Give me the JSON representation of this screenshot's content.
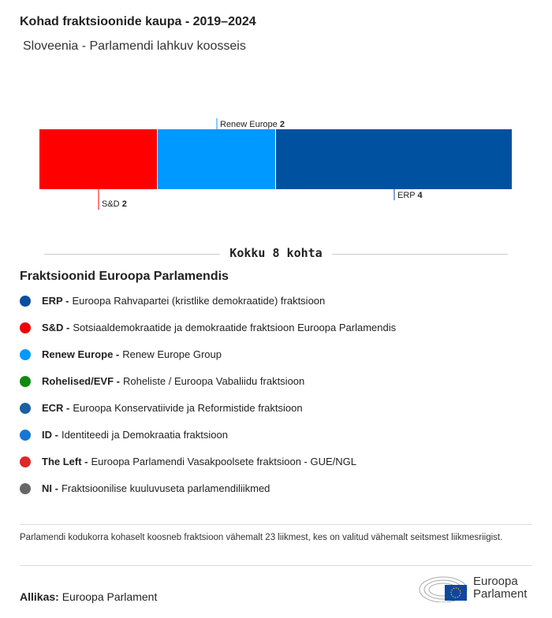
{
  "title": "Kohad fraktsioonide kaupa - 2019–2024",
  "subtitle": "Sloveenia - Parlamendi lahkuv koosseis",
  "chart_data": {
    "type": "bar",
    "orientation": "stacked-horizontal",
    "categories": [
      "S&D",
      "Renew Europe",
      "ERP"
    ],
    "values": [
      2,
      2,
      4
    ],
    "colors": [
      "#ff0000",
      "#0099ff",
      "#0052a0"
    ],
    "total": 8
  },
  "total_label": "Kokku 8 kohta",
  "legend_title": "Fraktsioonid Euroopa Parlamendis",
  "legend": [
    {
      "abbr": "ERP -",
      "name": "Euroopa Rahvapartei (kristlike demokraatide) fraktsioon",
      "color": "#0a4f9e"
    },
    {
      "abbr": "S&D -",
      "name": "Sotsiaaldemokraatide ja demokraatide fraktsioon Euroopa Parlamendis",
      "color": "#f00000"
    },
    {
      "abbr": "Renew Europe -",
      "name": "Renew Europe Group",
      "color": "#0099ff"
    },
    {
      "abbr": "Rohelised/EVF -",
      "name": "Roheliste / Euroopa Vabaliidu fraktsioon",
      "color": "#108a10"
    },
    {
      "abbr": "ECR -",
      "name": "Euroopa Konservatiivide ja Reformistide fraktsioon",
      "color": "#1d5fa0"
    },
    {
      "abbr": "ID -",
      "name": "Identiteedi ja Demokraatia fraktsioon",
      "color": "#1477d3"
    },
    {
      "abbr": "The Left -",
      "name": "Euroopa Parlamendi Vasakpoolsete fraktsioon - GUE/NGL",
      "color": "#e0262a"
    },
    {
      "abbr": "NI -",
      "name": "Fraktsioonilise kuuluvuseta parlamendiliikmed",
      "color": "#666666"
    }
  ],
  "note": "Parlamendi kodukorra kohaselt koosneb fraktsioon vähemalt 23 liikmest, kes on valitud vähemalt seitsmest liikmesriigist.",
  "source_label": "Allikas:",
  "source": "Euroopa Parlament",
  "logo_text": "Euroopa Parlament"
}
